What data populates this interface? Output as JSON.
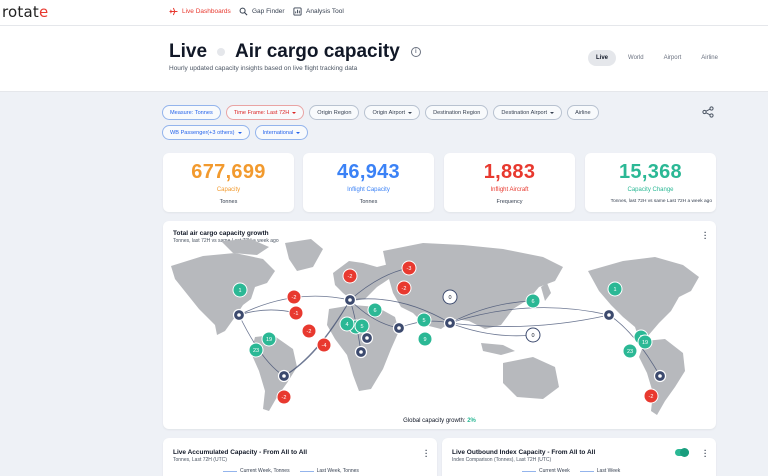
{
  "brand": {
    "logo_main": "rotat",
    "logo_accent": "e"
  },
  "nav": {
    "items": [
      {
        "label": "Live Dashboards",
        "icon": "airplane-icon"
      },
      {
        "label": "Gap Finder",
        "icon": "search-icon"
      },
      {
        "label": "Analysis Tool",
        "icon": "chart-icon"
      }
    ]
  },
  "header": {
    "title_left": "Live",
    "title_right": "Air cargo capacity",
    "info": "i",
    "subtitle": "Hourly updated capacity insights based on live flight tracking data",
    "view_tabs": [
      "Live",
      "World",
      "Airport",
      "Airline"
    ]
  },
  "filters": [
    {
      "label": "Measure: Tonnes",
      "style": "blue",
      "caret": false
    },
    {
      "label": "Time Frame: Last 72H",
      "style": "red",
      "caret": true
    },
    {
      "label": "Origin Region",
      "style": "plain",
      "caret": false
    },
    {
      "label": "Origin Airport",
      "style": "plain",
      "caret": true
    },
    {
      "label": "Destination Region",
      "style": "plain",
      "caret": false
    },
    {
      "label": "Destination Airport",
      "style": "plain",
      "caret": true
    },
    {
      "label": "Airline",
      "style": "plain",
      "caret": false
    },
    {
      "label": "WB Passenger(+3 others)",
      "style": "blue",
      "caret": true
    },
    {
      "label": "International",
      "style": "blue",
      "caret": true
    }
  ],
  "kpis": [
    {
      "value": "677,699",
      "label": "Capacity",
      "sub": "Tonnes",
      "color": "#f29a2e"
    },
    {
      "value": "46,943",
      "label": "Inflight Capacity",
      "sub": "Tonnes",
      "color": "#3b82f6"
    },
    {
      "value": "1,883",
      "label": "Inflight Aircraft",
      "sub": "Frequency",
      "color": "#e8392f"
    },
    {
      "value": "15,368",
      "label": "Capacity Change",
      "sub": "Tonnes, last 72H vs same Last 72H a week ago",
      "color": "#2bb895"
    }
  ],
  "map": {
    "title": "Total air cargo capacity growth",
    "subtitle": "Tonnes, last 72H vs same Last 72H a week ago",
    "growth_label": "Global capacity growth:",
    "growth_value": "2%",
    "nodes": [
      {
        "v": "1",
        "t": "g"
      },
      {
        "v": "-2",
        "t": "r"
      },
      {
        "v": "-1",
        "t": "r"
      },
      {
        "v": "-2",
        "t": "r"
      },
      {
        "v": "-4",
        "t": "r"
      },
      {
        "v": "19",
        "t": "g"
      },
      {
        "v": "23",
        "t": "g"
      },
      {
        "v": "-2",
        "t": "r"
      },
      {
        "v": "-2",
        "t": "r"
      },
      {
        "v": "-3",
        "t": "r"
      },
      {
        "v": "5",
        "t": "g"
      },
      {
        "v": "-2",
        "t": "r"
      },
      {
        "v": "6",
        "t": "g"
      },
      {
        "v": "5",
        "t": "g"
      },
      {
        "v": "4",
        "t": "g"
      },
      {
        "v": "5",
        "t": "g"
      },
      {
        "v": "9",
        "t": "g"
      },
      {
        "v": "0",
        "t": "w"
      },
      {
        "v": "6",
        "t": "g"
      },
      {
        "v": "0",
        "t": "w"
      },
      {
        "v": "1",
        "t": "g"
      },
      {
        "v": "1",
        "t": "g"
      },
      {
        "v": "19",
        "t": "g"
      },
      {
        "v": "23",
        "t": "g"
      },
      {
        "v": "-2",
        "t": "r"
      }
    ]
  },
  "bottom": [
    {
      "title": "Live Accumulated Capacity - From All to All",
      "sub": "Tonnes, Last 72H (UTC)",
      "legend": [
        "Current Week, Tonnes",
        "Last Week, Tonnes"
      ]
    },
    {
      "title": "Live Outbound Index Capacity - From All to All",
      "sub": "Index Comparison (Tonnes), Last 72H (UTC)",
      "legend": [
        "Current Week",
        "Last Week"
      ]
    }
  ]
}
